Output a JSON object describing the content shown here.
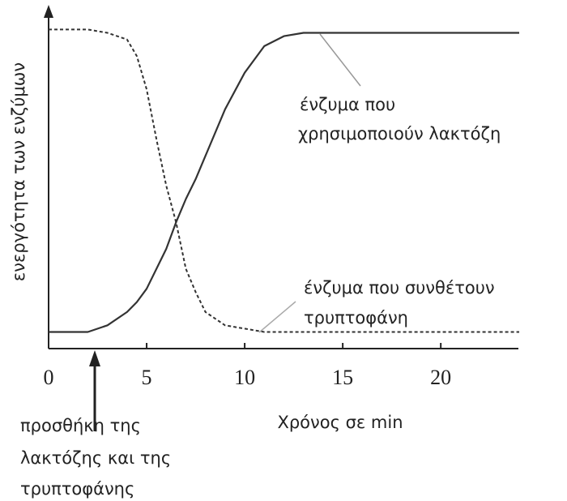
{
  "chart_data": {
    "type": "line",
    "xlabel": "Χρόνος σε min",
    "ylabel": "ενεργότητα των ενζύμων",
    "x": [
      0,
      1,
      2,
      3,
      4,
      4.5,
      5,
      5.5,
      6,
      6.5,
      7,
      7.5,
      8,
      9,
      10,
      11,
      12,
      13,
      14,
      16,
      18,
      20,
      22,
      24
    ],
    "series": [
      {
        "color": "#333333",
        "dash": false,
        "values": [
          5,
          5,
          5,
          7,
          11,
          14,
          18,
          24,
          30,
          38,
          45,
          51,
          58,
          72,
          83,
          91,
          94,
          95,
          95,
          95,
          95,
          95,
          95,
          95
        ]
      },
      {
        "color": "#333333",
        "dash": true,
        "values": [
          96,
          96,
          96,
          95,
          93,
          88,
          78,
          63,
          49,
          38,
          24,
          17,
          11,
          7,
          6,
          5,
          5,
          5,
          5,
          5,
          5,
          5,
          5,
          5
        ]
      }
    ],
    "xlim": [
      0,
      24
    ],
    "xticks": [
      0,
      5,
      10,
      15,
      20
    ],
    "ylim": [
      0,
      100
    ],
    "annotations": [
      {
        "lines": [
          "ένζυμα που",
          "χρησιμοποιούν λακτόζη"
        ]
      },
      {
        "lines": [
          "ένζυμα που συνθέτουν",
          "τρυπτοφάνη"
        ]
      },
      {
        "lines": [
          "προσθήκη της",
          "λακτόζης και της",
          "τρυπτοφάνης"
        ]
      }
    ]
  }
}
